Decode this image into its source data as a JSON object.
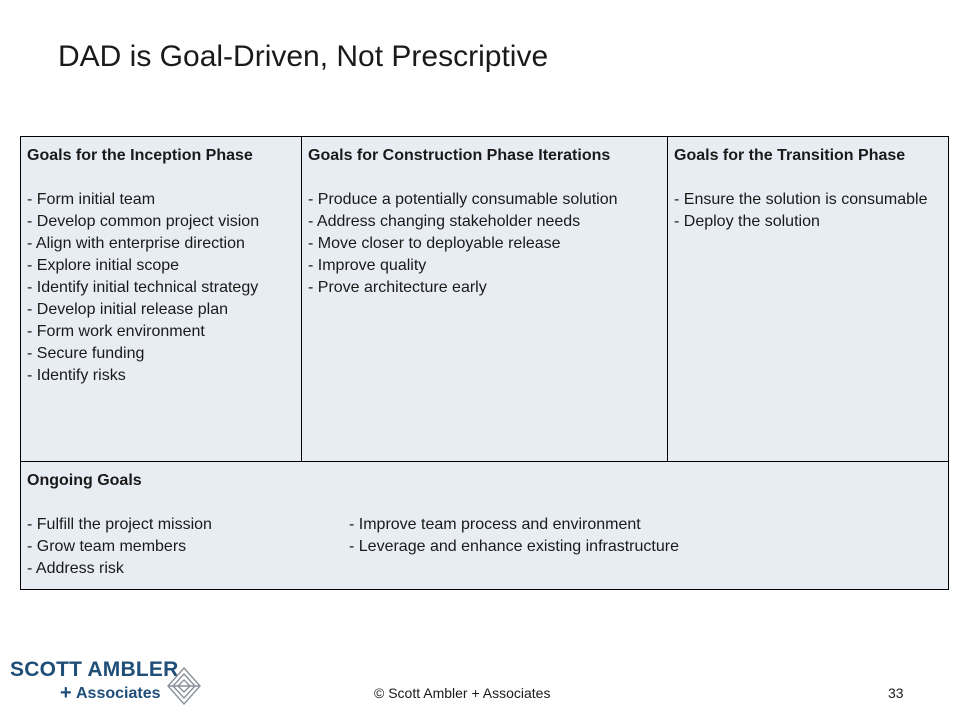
{
  "slide": {
    "title": "DAD is Goal-Driven, Not Prescriptive",
    "copyright": "© Scott Ambler + Associates",
    "page_number": "33"
  },
  "logo": {
    "line1": "SCOTT AMBLER",
    "plus": "+",
    "line2": "Associates"
  },
  "table": {
    "inception": {
      "heading": "Goals for the Inception Phase",
      "items": [
        "- Form initial team",
        "- Develop common project vision",
        "- Align with enterprise direction",
        "- Explore initial scope",
        "- Identify initial technical strategy",
        "- Develop initial release plan",
        "- Form work environment",
        "- Secure funding",
        "- Identify risks"
      ]
    },
    "construction": {
      "heading": "Goals for Construction Phase Iterations",
      "items": [
        "- Produce a potentially consumable solution",
        "- Address changing stakeholder needs",
        "- Move closer to deployable release",
        "- Improve quality",
        "- Prove architecture early"
      ]
    },
    "transition": {
      "heading": "Goals for the Transition Phase",
      "items": [
        "- Ensure the solution is consumable",
        "- Deploy the solution"
      ]
    },
    "ongoing": {
      "heading": "Ongoing Goals",
      "col1": [
        "- Fulfill the project mission",
        "- Grow team members",
        "- Address risk"
      ],
      "col2": [
        "- Improve team process and environment",
        "- Leverage and enhance existing infrastructure"
      ]
    }
  }
}
